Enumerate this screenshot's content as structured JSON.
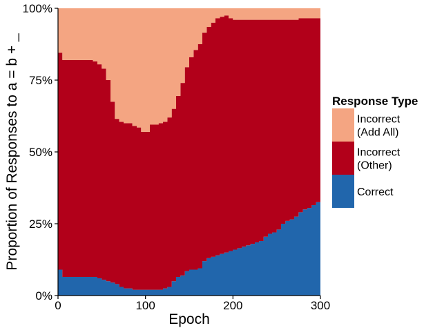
{
  "chart_data": {
    "type": "area",
    "stacked": "proportion",
    "xlabel": "Epoch",
    "ylabel": "Proportion of Responses to a = b + _",
    "xlim": [
      0,
      300
    ],
    "ylim": [
      0,
      1
    ],
    "x_ticks": [
      0,
      100,
      200,
      300
    ],
    "x_tick_labels": [
      "0",
      "100",
      "200",
      "300"
    ],
    "y_ticks": [
      0,
      0.25,
      0.5,
      0.75,
      1
    ],
    "y_tick_labels": [
      "0%",
      "25%",
      "50%",
      "75%",
      "100%"
    ],
    "grid": false,
    "legend": {
      "title": "Response Type",
      "position": "right",
      "entries": [
        {
          "series": "add_all",
          "lines": [
            "Incorrect",
            "(Add All)"
          ]
        },
        {
          "series": "other",
          "lines": [
            "Incorrect",
            "(Other)"
          ]
        },
        {
          "series": "correct",
          "lines": [
            "Correct"
          ]
        }
      ]
    },
    "colors": {
      "correct": "#2166ac",
      "other": "#b2001a",
      "add_all": "#f4a582"
    },
    "x": [
      0,
      5,
      10,
      15,
      20,
      25,
      30,
      35,
      40,
      45,
      50,
      55,
      60,
      65,
      70,
      75,
      80,
      85,
      90,
      95,
      100,
      105,
      110,
      115,
      120,
      125,
      130,
      135,
      140,
      145,
      150,
      155,
      160,
      165,
      170,
      175,
      180,
      185,
      190,
      195,
      200,
      205,
      210,
      215,
      220,
      225,
      230,
      235,
      240,
      245,
      250,
      255,
      260,
      265,
      270,
      275,
      280,
      285,
      290,
      295,
      300
    ],
    "series": [
      {
        "key": "correct",
        "name": "Correct",
        "values": [
          0.09,
          0.065,
          0.065,
          0.065,
          0.065,
          0.065,
          0.065,
          0.065,
          0.065,
          0.06,
          0.055,
          0.05,
          0.045,
          0.04,
          0.03,
          0.025,
          0.025,
          0.02,
          0.02,
          0.02,
          0.02,
          0.02,
          0.02,
          0.02,
          0.025,
          0.03,
          0.05,
          0.065,
          0.07,
          0.085,
          0.09,
          0.09,
          0.095,
          0.12,
          0.13,
          0.135,
          0.14,
          0.145,
          0.15,
          0.155,
          0.16,
          0.165,
          0.17,
          0.175,
          0.18,
          0.185,
          0.19,
          0.205,
          0.215,
          0.22,
          0.23,
          0.25,
          0.26,
          0.265,
          0.275,
          0.29,
          0.3,
          0.305,
          0.315,
          0.325,
          0.35
        ]
      },
      {
        "key": "other",
        "name": "Incorrect (Other)",
        "values": [
          0.755,
          0.755,
          0.755,
          0.755,
          0.755,
          0.755,
          0.755,
          0.755,
          0.75,
          0.745,
          0.735,
          0.7,
          0.63,
          0.575,
          0.575,
          0.575,
          0.575,
          0.57,
          0.565,
          0.55,
          0.55,
          0.575,
          0.575,
          0.58,
          0.58,
          0.59,
          0.6,
          0.63,
          0.67,
          0.71,
          0.74,
          0.765,
          0.78,
          0.795,
          0.805,
          0.815,
          0.825,
          0.825,
          0.825,
          0.81,
          0.8,
          0.795,
          0.79,
          0.785,
          0.78,
          0.775,
          0.77,
          0.755,
          0.745,
          0.74,
          0.73,
          0.71,
          0.7,
          0.695,
          0.685,
          0.675,
          0.665,
          0.66,
          0.65,
          0.64,
          0.615
        ]
      },
      {
        "key": "add_all",
        "name": "Incorrect (Add All)",
        "values": [
          0.155,
          0.18,
          0.18,
          0.18,
          0.18,
          0.18,
          0.18,
          0.18,
          0.185,
          0.195,
          0.21,
          0.25,
          0.325,
          0.385,
          0.395,
          0.4,
          0.4,
          0.41,
          0.415,
          0.43,
          0.43,
          0.405,
          0.405,
          0.4,
          0.395,
          0.38,
          0.35,
          0.305,
          0.26,
          0.205,
          0.17,
          0.145,
          0.125,
          0.085,
          0.065,
          0.05,
          0.035,
          0.03,
          0.025,
          0.035,
          0.04,
          0.04,
          0.04,
          0.04,
          0.04,
          0.04,
          0.04,
          0.04,
          0.04,
          0.04,
          0.04,
          0.04,
          0.04,
          0.04,
          0.04,
          0.035,
          0.035,
          0.035,
          0.035,
          0.035,
          0.035
        ]
      }
    ]
  }
}
